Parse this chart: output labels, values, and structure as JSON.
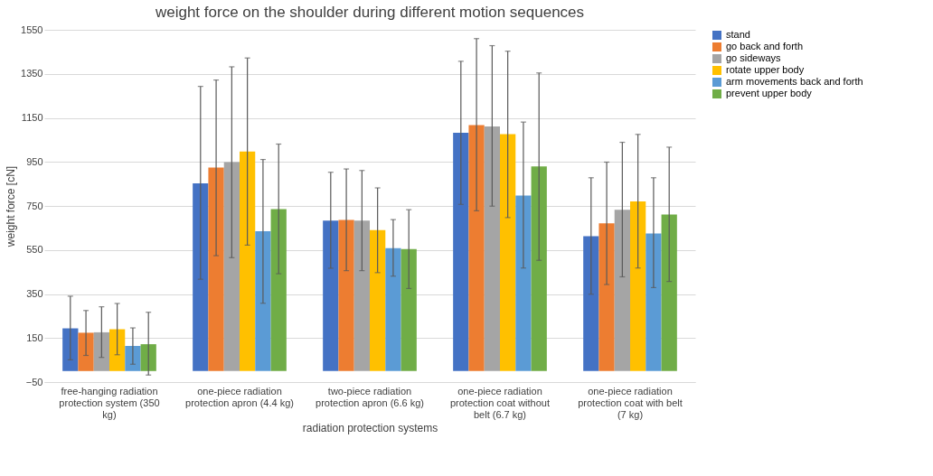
{
  "chart_data": {
    "type": "bar",
    "title": "weight force on the shoulder during different motion sequences",
    "xlabel": "radiation protection systems",
    "ylabel": "weight force [cN]",
    "categories": [
      "free-hanging radiation protection system (350 kg)",
      "one-piece radiation protection apron (4.4 kg)",
      "two-piece radiation protection apron (6.6 kg)",
      "one-piece radiation protection coat without belt (6.7 kg)",
      "one-piece radiation protection coat with belt (7 kg)"
    ],
    "series": [
      {
        "name": "stand",
        "color": "#4472c4",
        "values": [
          194,
          853,
          683,
          1082,
          613
        ],
        "errors": [
          [
            51,
            340
          ],
          [
            417,
            1293
          ],
          [
            467,
            903
          ],
          [
            757,
            1407
          ],
          [
            349,
            878
          ]
        ]
      },
      {
        "name": "go back and forth",
        "color": "#ed7d31",
        "values": [
          174,
          924,
          686,
          1117,
          671
        ],
        "errors": [
          [
            71,
            275
          ],
          [
            524,
            1322
          ],
          [
            456,
            918
          ],
          [
            728,
            1510
          ],
          [
            393,
            949
          ]
        ]
      },
      {
        "name": "go sideways",
        "color": "#a5a5a5",
        "values": [
          176,
          949,
          683,
          1111,
          733
        ],
        "errors": [
          [
            62,
            292
          ],
          [
            515,
            1382
          ],
          [
            456,
            911
          ],
          [
            749,
            1478
          ],
          [
            428,
            1039
          ]
        ]
      },
      {
        "name": "rotate upper body",
        "color": "#ffc000",
        "values": [
          190,
          997,
          640,
          1076,
          771
        ],
        "errors": [
          [
            74,
            307
          ],
          [
            572,
            1422
          ],
          [
            447,
            832
          ],
          [
            697,
            1453
          ],
          [
            468,
            1075
          ]
        ]
      },
      {
        "name": "arm movements back and forth",
        "color": "#5b9bd5",
        "values": [
          114,
          635,
          558,
          797,
          625
        ],
        "errors": [
          [
            31,
            196
          ],
          [
            308,
            961
          ],
          [
            431,
            688
          ],
          [
            468,
            1131
          ],
          [
            379,
            878
          ]
        ]
      },
      {
        "name": "prevent upper body",
        "color": "#70ad47",
        "values": [
          122,
          736,
          554,
          929,
          711
        ],
        "errors": [
          [
            -18,
            267
          ],
          [
            442,
            1031
          ],
          [
            375,
            733
          ],
          [
            503,
            1354
          ],
          [
            407,
            1017
          ]
        ]
      }
    ],
    "ylim": [
      -50,
      1550
    ],
    "yticks": [
      -50,
      150,
      350,
      550,
      750,
      950,
      1150,
      1350,
      1550
    ],
    "grid": "y",
    "legend": "right"
  }
}
